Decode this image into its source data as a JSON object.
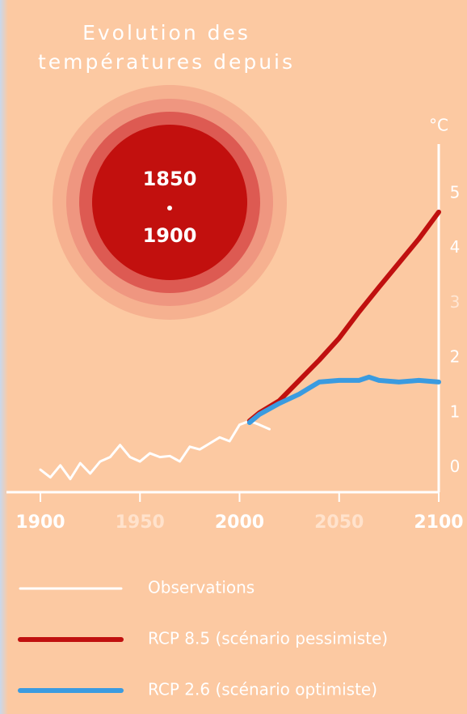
{
  "chart_data": {
    "type": "line",
    "title": [
      "Evolution des",
      "températures depuis"
    ],
    "period_start": "1850",
    "period_end": "1900",
    "y_unit": "°C",
    "xlim": [
      1900,
      2100
    ],
    "xticks": [
      1900,
      1950,
      2000,
      2050,
      2100
    ],
    "xtick_label_colors": [
      "#ffffff",
      "#ffe2cc",
      "#ffffff",
      "#ffe2cc",
      "#ffffff"
    ],
    "ylim": [
      -0.45,
      5.9
    ],
    "yticks": [
      0,
      1,
      2,
      3,
      4,
      5
    ],
    "ytick_label_colors": [
      "#ffffff",
      "#ffffff",
      "#ffffff",
      "#ffe6d4",
      "#ffffff",
      "#ffffff"
    ],
    "series": [
      {
        "name": "Observations",
        "color": "#ffffff",
        "width": 3,
        "x": [
          1900,
          1905,
          1910,
          1915,
          1920,
          1925,
          1930,
          1935,
          1940,
          1945,
          1950,
          1955,
          1960,
          1965,
          1970,
          1975,
          1980,
          1985,
          1990,
          1995,
          2000,
          2005,
          2010,
          2015
        ],
        "values": [
          -0.04,
          -0.18,
          0.04,
          -0.21,
          0.08,
          -0.11,
          0.11,
          0.19,
          0.41,
          0.19,
          0.11,
          0.26,
          0.19,
          0.21,
          0.11,
          0.38,
          0.33,
          0.44,
          0.55,
          0.48,
          0.78,
          0.85,
          0.78,
          0.7
        ]
      },
      {
        "name": "RCP 8.5 (scénario pessimiste)",
        "color": "#c0100f",
        "width": 6,
        "x": [
          2005,
          2010,
          2020,
          2030,
          2040,
          2050,
          2060,
          2070,
          2080,
          2090,
          2100
        ],
        "values": [
          0.85,
          1.0,
          1.22,
          1.59,
          1.96,
          2.36,
          2.84,
          3.29,
          3.73,
          4.17,
          4.66
        ]
      },
      {
        "name": "RCP 2.6 (scénario optimiste)",
        "color": "#3a9be0",
        "width": 6,
        "x": [
          2005,
          2010,
          2020,
          2030,
          2040,
          2050,
          2060,
          2065,
          2070,
          2080,
          2090,
          2100
        ],
        "values": [
          0.82,
          0.97,
          1.17,
          1.34,
          1.56,
          1.59,
          1.59,
          1.65,
          1.59,
          1.56,
          1.59,
          1.56
        ]
      }
    ]
  }
}
